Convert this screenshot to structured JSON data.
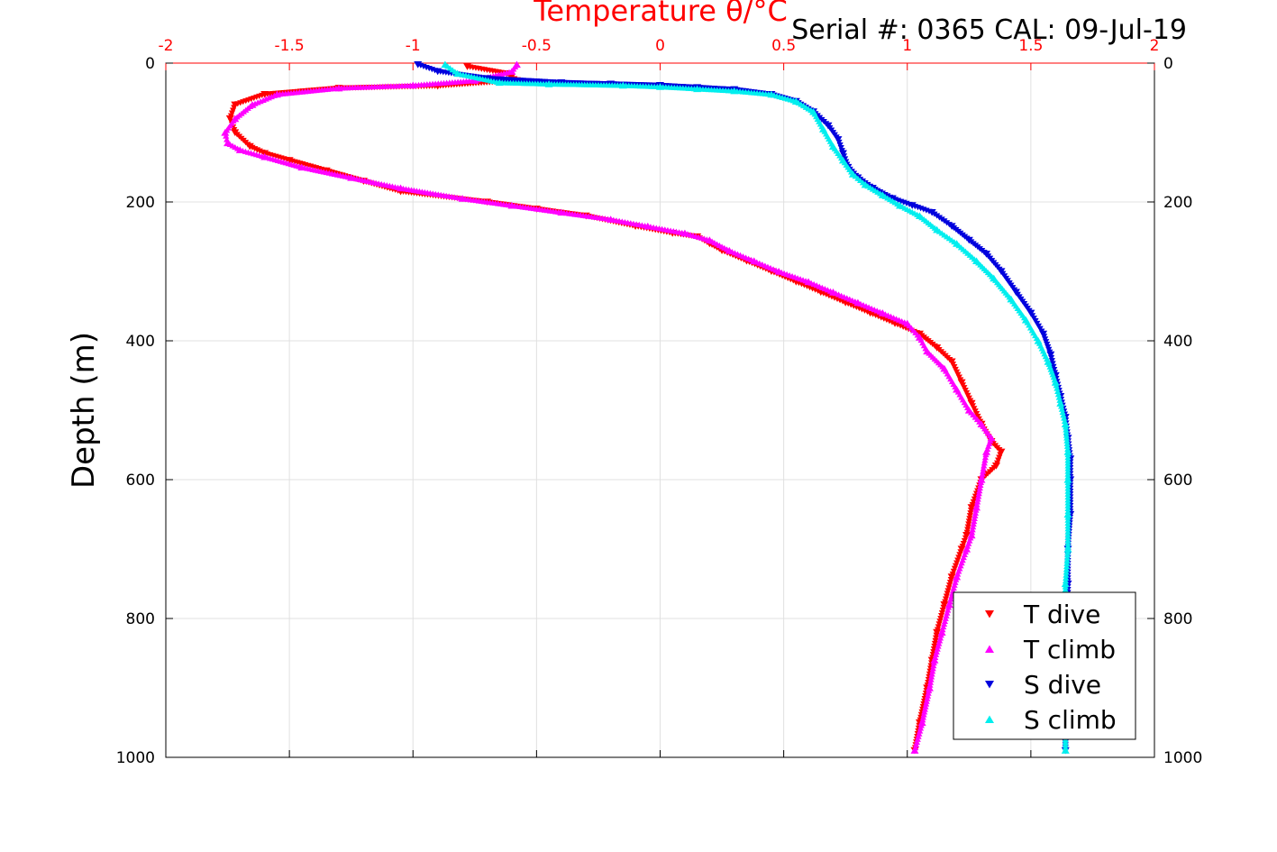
{
  "colors": {
    "t_dive": "#ff0000",
    "t_climb": "#ff00ff",
    "s_dive": "#0000dd",
    "s_climb": "#00eeee",
    "top_axis": "#ff0000",
    "grid": "#e0e0e0"
  },
  "chart_data": {
    "type": "scatter",
    "title": "Temperature θ/°C",
    "subtitle": "Serial #: 0365  CAL: 09-Jul-19",
    "ylabel": "Depth (m)",
    "xlim": [
      -2,
      2
    ],
    "ylim": [
      0,
      1000
    ],
    "y_reversed": true,
    "x_ticks": [
      "-2",
      "-1.5",
      "-1",
      "-0.5",
      "0",
      "0.5",
      "1",
      "1.5",
      "2"
    ],
    "y_ticks": [
      "0",
      "200",
      "400",
      "600",
      "800",
      "1000"
    ],
    "grid": true,
    "legend_position": "bottom-right",
    "series": [
      {
        "name": "T dive",
        "marker": "triangle-down",
        "x": [
          -0.78,
          -0.62,
          -0.58,
          -0.9,
          -1.3,
          -1.6,
          -1.72,
          -1.74,
          -1.72,
          -1.66,
          -1.6,
          -1.5,
          -1.35,
          -1.2,
          -1.05,
          -0.7,
          -0.5,
          -0.3,
          -0.1,
          0.05,
          0.15,
          0.2,
          0.25,
          0.35,
          0.45,
          0.55,
          0.65,
          0.75,
          0.85,
          0.95,
          1.05,
          1.12,
          1.18,
          1.22,
          1.26,
          1.3,
          1.34,
          1.38,
          1.36,
          1.3,
          1.26,
          1.24,
          1.22,
          1.18,
          1.15,
          1.12,
          1.1,
          1.08,
          1.05,
          1.03
        ],
        "y": [
          5,
          15,
          25,
          33,
          36,
          45,
          60,
          80,
          100,
          120,
          130,
          140,
          155,
          170,
          185,
          200,
          210,
          220,
          235,
          245,
          250,
          260,
          270,
          285,
          300,
          315,
          330,
          345,
          360,
          375,
          390,
          410,
          430,
          460,
          490,
          520,
          545,
          560,
          580,
          600,
          640,
          680,
          700,
          740,
          780,
          820,
          860,
          900,
          950,
          990
        ]
      },
      {
        "name": "T climb",
        "marker": "triangle-up",
        "x": [
          -0.58,
          -0.6,
          -0.75,
          -1.0,
          -1.3,
          -1.55,
          -1.65,
          -1.72,
          -1.76,
          -1.75,
          -1.7,
          -1.6,
          -1.45,
          -1.25,
          -1.05,
          -0.8,
          -0.6,
          -0.4,
          -0.2,
          -0.05,
          0.1,
          0.2,
          0.28,
          0.38,
          0.48,
          0.6,
          0.7,
          0.8,
          0.9,
          1.0,
          1.05,
          1.08,
          1.15,
          1.2,
          1.25,
          1.3,
          1.34,
          1.32,
          1.3,
          1.28,
          1.26,
          1.24,
          1.2,
          1.17,
          1.14,
          1.11,
          1.09,
          1.06,
          1.03
        ],
        "y": [
          2,
          12,
          25,
          32,
          36,
          45,
          60,
          80,
          100,
          115,
          125,
          135,
          150,
          165,
          180,
          195,
          205,
          215,
          225,
          235,
          245,
          255,
          270,
          285,
          300,
          315,
          330,
          345,
          360,
          375,
          395,
          415,
          440,
          470,
          500,
          520,
          540,
          560,
          600,
          640,
          680,
          700,
          740,
          780,
          820,
          860,
          900,
          950,
          990
        ]
      },
      {
        "name": "S dive",
        "marker": "triangle-down",
        "x": [
          -0.98,
          -0.9,
          -0.7,
          -0.4,
          -0.2,
          0.0,
          0.15,
          0.3,
          0.45,
          0.55,
          0.62,
          0.68,
          0.72,
          0.74,
          0.76,
          0.8,
          0.86,
          0.94,
          1.02,
          1.1,
          1.18,
          1.25,
          1.32,
          1.38,
          1.44,
          1.5,
          1.55,
          1.58,
          1.6,
          1.62,
          1.64,
          1.65,
          1.66,
          1.66,
          1.66,
          1.65,
          1.65,
          1.65,
          1.65,
          1.64,
          1.64
        ],
        "y": [
          2,
          12,
          22,
          28,
          30,
          32,
          35,
          38,
          45,
          55,
          70,
          90,
          110,
          130,
          150,
          165,
          180,
          195,
          205,
          215,
          235,
          255,
          275,
          300,
          330,
          360,
          390,
          420,
          450,
          480,
          510,
          540,
          570,
          600,
          650,
          700,
          750,
          800,
          850,
          900,
          990
        ]
      },
      {
        "name": "S climb",
        "marker": "triangle-up",
        "x": [
          -0.87,
          -0.82,
          -0.65,
          -0.45,
          -0.15,
          0.0,
          0.15,
          0.3,
          0.45,
          0.55,
          0.62,
          0.66,
          0.7,
          0.74,
          0.78,
          0.83,
          0.9,
          0.97,
          1.05,
          1.12,
          1.2,
          1.28,
          1.35,
          1.42,
          1.48,
          1.53,
          1.57,
          1.6,
          1.62,
          1.64,
          1.65,
          1.65,
          1.65,
          1.65,
          1.64,
          1.64,
          1.64,
          1.64,
          1.64
        ],
        "y": [
          2,
          15,
          28,
          30,
          32,
          34,
          37,
          40,
          45,
          55,
          70,
          95,
          120,
          140,
          160,
          175,
          190,
          205,
          220,
          240,
          260,
          285,
          310,
          340,
          370,
          400,
          430,
          460,
          490,
          520,
          560,
          600,
          650,
          700,
          750,
          800,
          850,
          900,
          990
        ]
      }
    ]
  }
}
